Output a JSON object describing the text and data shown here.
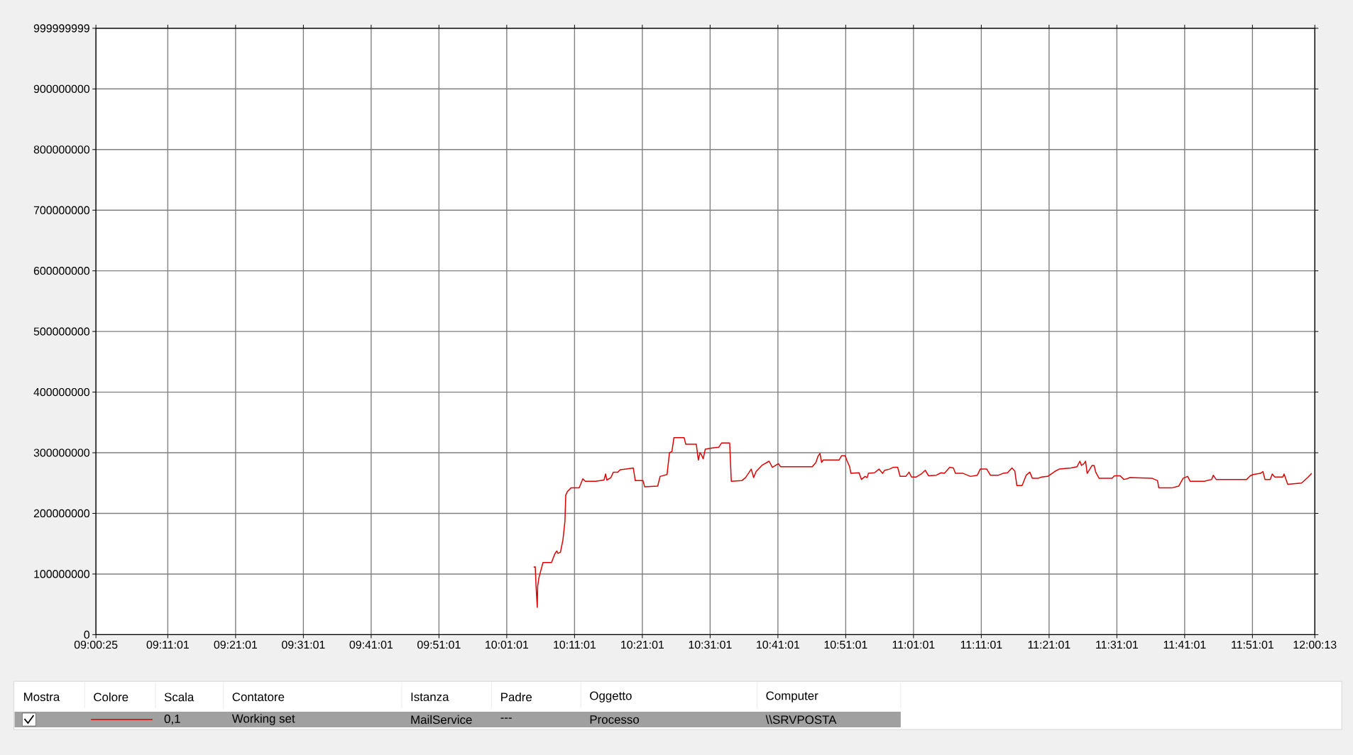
{
  "chart_data": {
    "type": "line",
    "xlim": [
      9.006944,
      12.003611
    ],
    "xticks": [
      {
        "value": 9.006944,
        "label": "09:00:25"
      },
      {
        "value": 9.18361,
        "label": "09:11:01"
      },
      {
        "value": 9.35028,
        "label": "09:21:01"
      },
      {
        "value": 9.51694,
        "label": "09:31:01"
      },
      {
        "value": 9.68361,
        "label": "09:41:01"
      },
      {
        "value": 9.85028,
        "label": "09:51:01"
      },
      {
        "value": 10.01694,
        "label": "10:01:01"
      },
      {
        "value": 10.18361,
        "label": "10:11:01"
      },
      {
        "value": 10.35028,
        "label": "10:21:01"
      },
      {
        "value": 10.51694,
        "label": "10:31:01"
      },
      {
        "value": 10.68361,
        "label": "10:41:01"
      },
      {
        "value": 10.85028,
        "label": "10:51:01"
      },
      {
        "value": 11.01694,
        "label": "11:01:01"
      },
      {
        "value": 11.18361,
        "label": "11:11:01"
      },
      {
        "value": 11.35028,
        "label": "11:21:01"
      },
      {
        "value": 11.51694,
        "label": "11:31:01"
      },
      {
        "value": 11.68361,
        "label": "11:41:01"
      },
      {
        "value": 11.85028,
        "label": "11:51:01"
      },
      {
        "value": 12.003611,
        "label": "12:00:13"
      }
    ],
    "ylim": [
      0,
      999999999
    ],
    "yticks": [
      0,
      100000000,
      200000000,
      300000000,
      400000000,
      500000000,
      600000000,
      700000000,
      800000000,
      900000000,
      999999999
    ],
    "grid": true,
    "legend": "bottom",
    "annotations": [
      "Mostra",
      "Colore",
      "Scala",
      "Contatore",
      "Istanza",
      "Padre",
      "Oggetto",
      "Computer",
      "0,1",
      "MailService",
      "---",
      "Processo",
      "\\\\SRVPOSTA"
    ],
    "x": [
      10.083,
      10.087,
      10.089,
      10.092,
      10.093,
      10.096,
      10.106,
      10.127,
      10.135,
      10.14,
      10.143,
      10.149,
      10.155,
      10.16,
      10.162,
      10.166,
      10.175,
      10.195,
      10.204,
      10.21,
      10.236,
      10.256,
      10.26,
      10.263,
      10.273,
      10.279,
      10.29,
      10.296,
      10.31,
      10.328,
      10.333,
      10.352,
      10.356,
      10.388,
      10.394,
      10.411,
      10.417,
      10.423,
      10.428,
      10.453,
      10.457,
      10.483,
      10.488,
      10.492,
      10.496,
      10.5,
      10.505,
      10.523,
      10.538,
      10.545,
      10.565,
      10.569,
      10.595,
      10.604,
      10.618,
      10.624,
      10.63,
      10.644,
      10.662,
      10.67,
      10.685,
      10.69,
      10.748,
      10.768,
      10.777,
      10.782,
      10.787,
      10.791,
      10.795,
      10.834,
      10.84,
      10.849,
      10.854,
      10.86,
      10.863,
      10.883,
      10.889,
      10.898,
      10.903,
      10.906,
      10.921,
      10.932,
      10.941,
      10.946,
      10.958,
      10.967,
      10.978,
      10.984,
      10.998,
      11.006,
      11.012,
      11.024,
      11.036,
      11.046,
      11.054,
      11.073,
      11.085,
      11.093,
      11.106,
      11.115,
      11.12,
      11.139,
      11.157,
      11.174,
      11.181,
      11.197,
      11.206,
      11.226,
      11.237,
      11.248,
      11.259,
      11.266,
      11.271,
      11.284,
      11.294,
      11.303,
      11.309,
      11.324,
      11.332,
      11.347,
      11.364,
      11.375,
      11.404,
      11.419,
      11.426,
      11.43,
      11.436,
      11.44,
      11.444,
      11.456,
      11.461,
      11.465,
      11.473,
      11.505,
      11.511,
      11.525,
      11.534,
      11.542,
      11.548,
      11.603,
      11.617,
      11.62,
      11.652,
      11.669,
      11.68,
      11.691,
      11.697,
      11.732,
      11.75,
      11.754,
      11.761,
      11.836,
      11.845,
      11.852,
      11.87,
      11.876,
      11.881,
      11.894,
      11.899,
      11.905,
      11.925,
      11.928,
      11.937,
      11.971,
      11.986,
      11.996
    ],
    "series": [
      {
        "name": "Working set",
        "color": "#dd0000",
        "values": [
          111000000,
          112000000,
          80000000,
          45000000,
          80000000,
          94000000,
          119000000,
          119000000,
          133000000,
          138000000,
          134000000,
          136000000,
          156000000,
          187000000,
          230000000,
          236000000,
          242000000,
          242000000,
          257000000,
          253000000,
          253000000,
          255000000,
          265000000,
          255000000,
          259000000,
          268000000,
          268000000,
          272000000,
          273000000,
          275000000,
          254000000,
          254000000,
          244000000,
          245000000,
          261000000,
          264000000,
          300000000,
          302000000,
          325000000,
          325000000,
          314000000,
          314000000,
          288000000,
          300000000,
          296000000,
          290000000,
          306000000,
          308000000,
          309000000,
          316000000,
          316000000,
          253000000,
          254000000,
          259000000,
          273000000,
          259000000,
          269000000,
          279000000,
          286000000,
          276000000,
          282000000,
          277000000,
          277000000,
          277000000,
          284000000,
          294000000,
          299000000,
          284000000,
          288000000,
          288000000,
          295000000,
          295000000,
          286000000,
          277000000,
          266000000,
          267000000,
          256000000,
          261000000,
          259000000,
          266000000,
          267000000,
          273000000,
          266000000,
          271000000,
          273000000,
          276000000,
          276000000,
          261000000,
          261000000,
          268000000,
          260000000,
          260000000,
          265000000,
          271000000,
          262000000,
          263000000,
          267000000,
          266000000,
          276000000,
          275000000,
          266000000,
          266000000,
          261000000,
          263000000,
          273000000,
          273000000,
          263000000,
          263000000,
          266000000,
          267000000,
          275000000,
          270000000,
          246000000,
          246000000,
          263000000,
          268000000,
          258000000,
          258000000,
          260000000,
          261000000,
          269000000,
          273000000,
          275000000,
          277000000,
          286000000,
          279000000,
          282000000,
          286000000,
          266000000,
          279000000,
          279000000,
          268000000,
          258000000,
          258000000,
          262000000,
          262000000,
          256000000,
          257000000,
          259000000,
          258000000,
          254000000,
          242000000,
          242000000,
          245000000,
          258000000,
          261000000,
          253000000,
          253000000,
          256000000,
          263000000,
          256000000,
          256000000,
          262000000,
          264000000,
          266000000,
          269000000,
          256000000,
          256000000,
          265000000,
          260000000,
          260000000,
          265000000,
          248000000,
          250000000,
          259000000,
          266000000
        ]
      }
    ]
  }
}
